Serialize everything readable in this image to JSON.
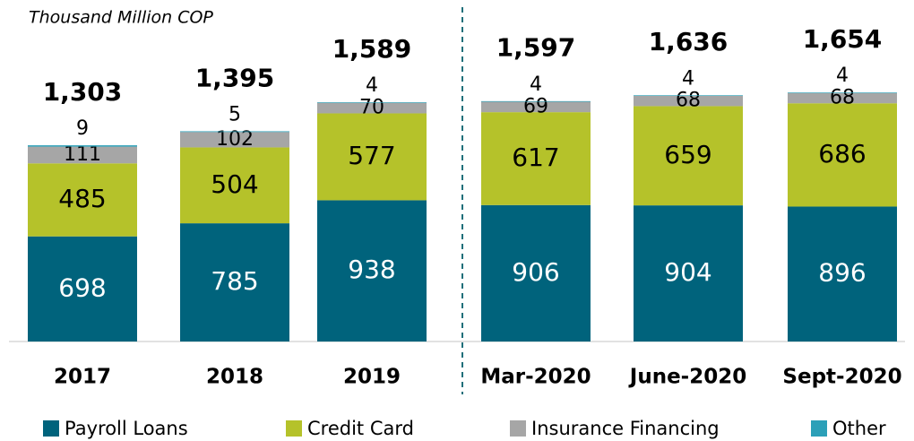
{
  "chart_data": {
    "type": "stacked_bar",
    "subtitle": "Thousand Million COP",
    "categories": [
      "2017",
      "2018",
      "2019",
      "Mar-2020",
      "June-2020",
      "Sept-2020"
    ],
    "series": [
      {
        "name": "Payroll Loans",
        "color": "#00637c",
        "values": [
          698,
          785,
          938,
          906,
          904,
          896
        ]
      },
      {
        "name": "Credit Card",
        "color": "#b5c22a",
        "values": [
          485,
          504,
          577,
          617,
          659,
          686
        ]
      },
      {
        "name": "Insurance Financing",
        "color": "#a6a6a6",
        "values": [
          111,
          102,
          70,
          69,
          68,
          68
        ]
      },
      {
        "name": "Other",
        "color": "#2ca0b8",
        "values": [
          9,
          5,
          4,
          4,
          4,
          4
        ]
      }
    ],
    "totals": [
      1303,
      1395,
      1589,
      1597,
      1636,
      1654
    ],
    "total_labels": [
      "1,303",
      "1,395",
      "1,589",
      "1,597",
      "1,636",
      "1,654"
    ],
    "divider_color": "#1f6f7a"
  }
}
